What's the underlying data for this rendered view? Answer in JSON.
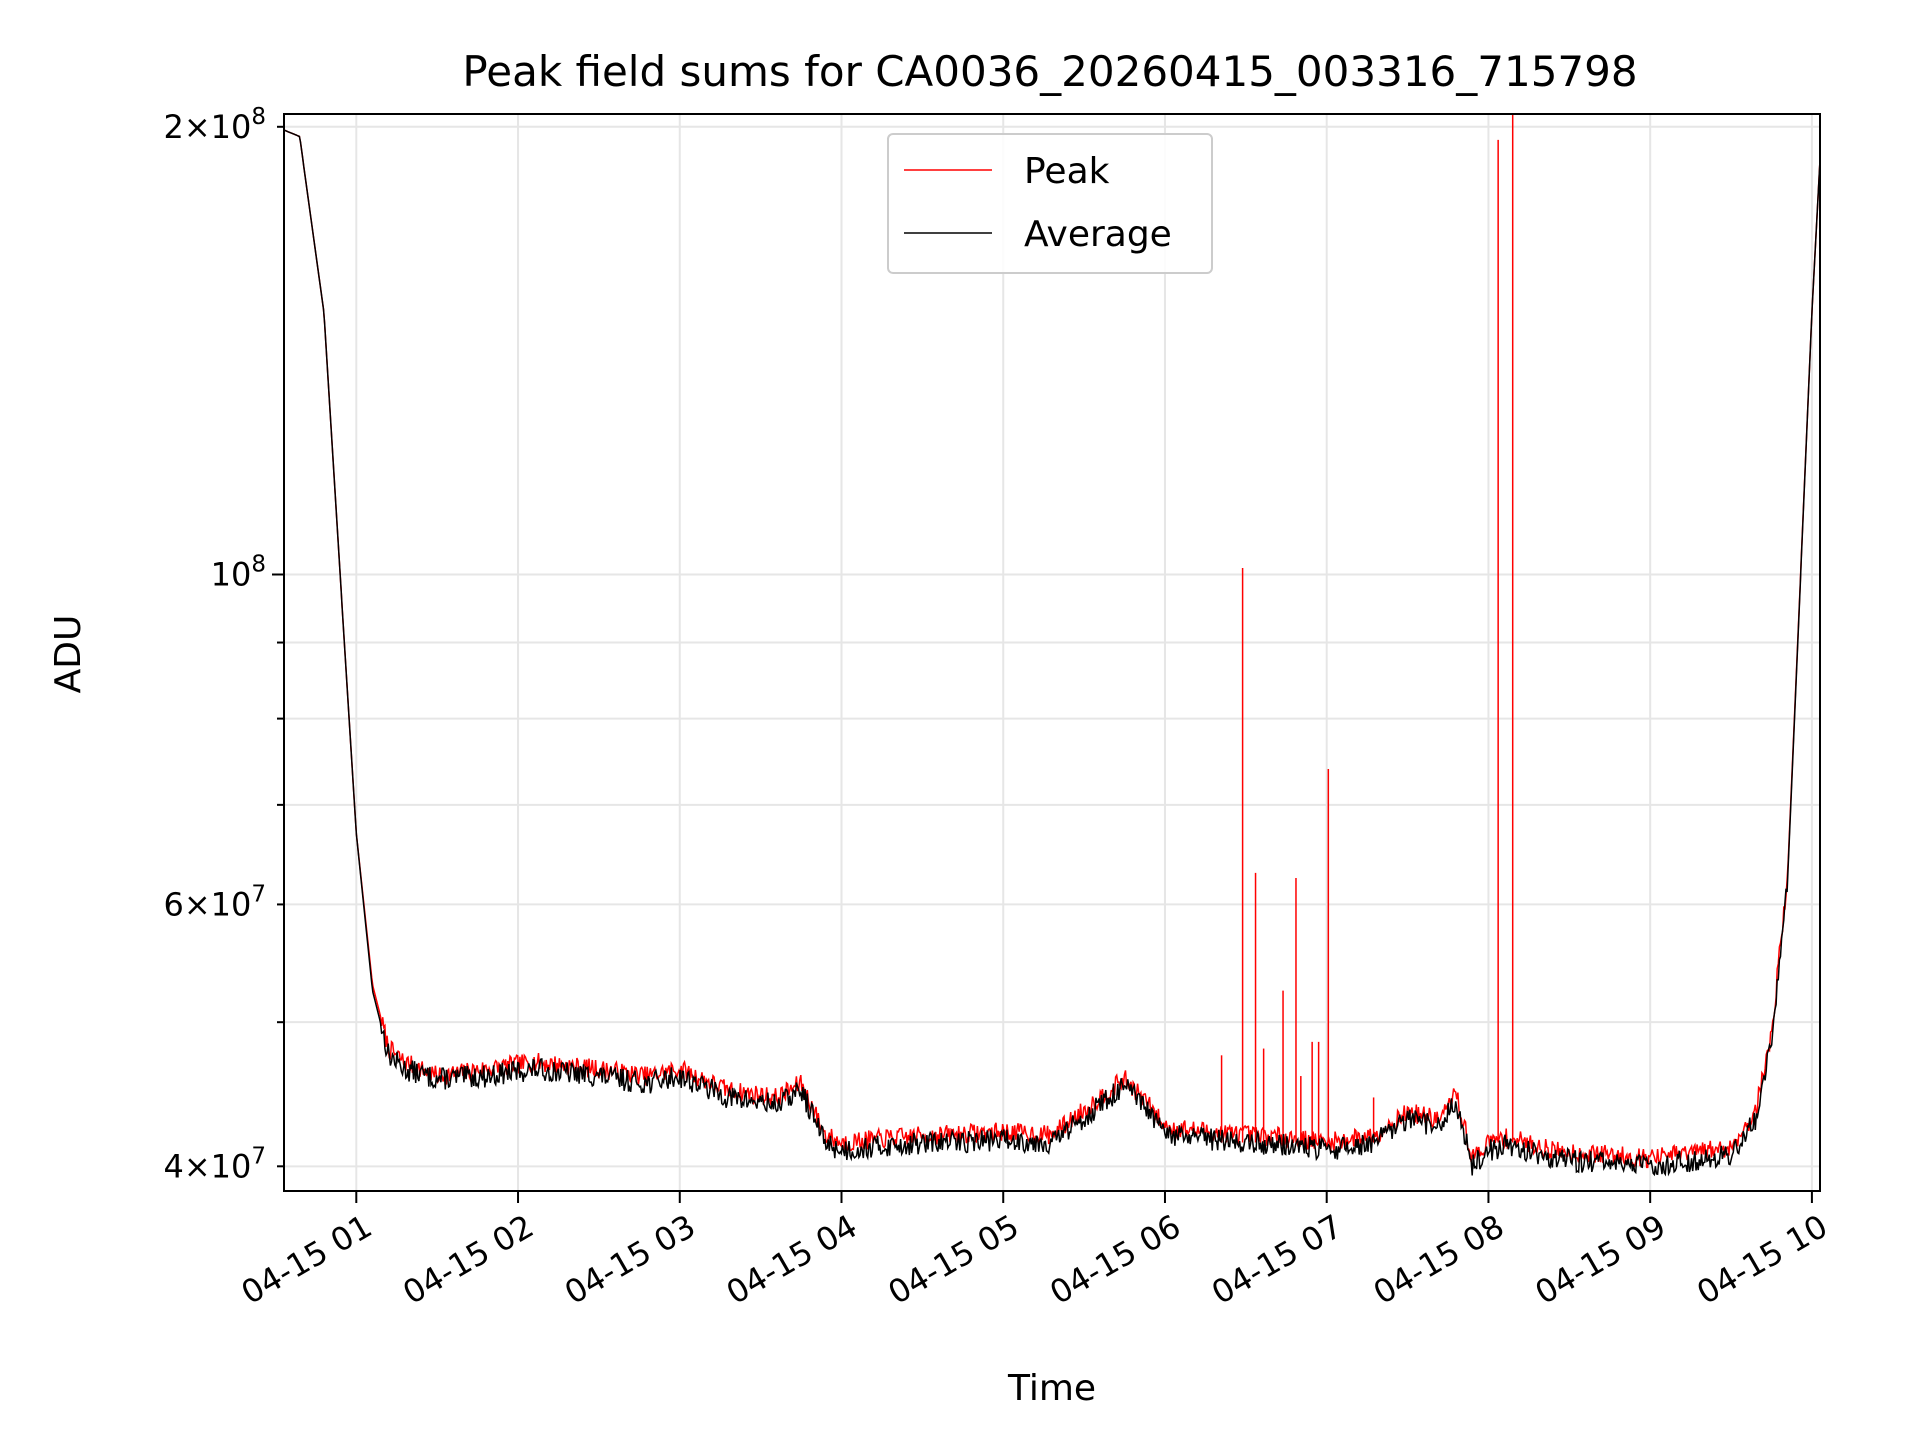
{
  "chart_data": {
    "type": "line",
    "title": "Peak field sums for CA0036_20260415_003316_715798",
    "xlabel": "Time",
    "ylabel": "ADU",
    "yscale": "log",
    "grid": true,
    "legend_position": "top-center",
    "xlim_hours": [
      0.553,
      10.05
    ],
    "ylim": [
      38500000,
      204000000
    ],
    "x_ticks": [
      {
        "label": "04-15 01",
        "hour": 1
      },
      {
        "label": "04-15 02",
        "hour": 2
      },
      {
        "label": "04-15 03",
        "hour": 3
      },
      {
        "label": "04-15 04",
        "hour": 4
      },
      {
        "label": "04-15 05",
        "hour": 5
      },
      {
        "label": "04-15 06",
        "hour": 6
      },
      {
        "label": "04-15 07",
        "hour": 7
      },
      {
        "label": "04-15 08",
        "hour": 8
      },
      {
        "label": "04-15 09",
        "hour": 9
      },
      {
        "label": "04-15 10",
        "hour": 10
      }
    ],
    "y_ticks_major": [
      {
        "base": "10",
        "exp": "8",
        "coef": "",
        "value": 100000000
      }
    ],
    "y_ticks_minor_labeled": [
      {
        "coef": "2",
        "base": "10",
        "exp": "8",
        "value": 200000000
      },
      {
        "coef": "6",
        "base": "10",
        "exp": "7",
        "value": 60000000
      },
      {
        "coef": "4",
        "base": "10",
        "exp": "7",
        "value": 40000000
      }
    ],
    "y_ticks_minor_unlabeled": [
      50000000,
      70000000,
      80000000,
      90000000
    ],
    "series": [
      {
        "name": "Peak",
        "color": "#ff0000",
        "x_hours": [
          0.553,
          0.65,
          0.8,
          0.9,
          1.0,
          1.1,
          1.2,
          1.3,
          1.5,
          1.8,
          2.1,
          2.5,
          2.8,
          3.0,
          3.3,
          3.6,
          3.75,
          3.9,
          4.0,
          4.3,
          4.6,
          5.0,
          5.3,
          5.6,
          5.75,
          5.9,
          6.0,
          6.2,
          6.5,
          6.8,
          7.0,
          7.3,
          7.5,
          7.7,
          7.8,
          7.9,
          8.0,
          8.1,
          8.2,
          8.4,
          8.6,
          8.8,
          9.0,
          9.2,
          9.5,
          9.65,
          9.75,
          9.85,
          10.0,
          10.05
        ],
        "values": [
          199000000,
          197000000,
          150000000,
          100000000,
          67000000,
          53000000,
          48000000,
          47000000,
          46000000,
          46500000,
          47000000,
          46500000,
          46000000,
          46500000,
          45000000,
          44500000,
          45500000,
          42000000,
          41500000,
          41800000,
          42000000,
          42200000,
          42000000,
          44500000,
          45800000,
          44000000,
          42500000,
          42300000,
          42000000,
          41800000,
          41500000,
          42000000,
          43500000,
          43000000,
          44800000,
          40500000,
          41500000,
          41800000,
          41600000,
          41000000,
          40800000,
          40700000,
          40500000,
          40800000,
          41200000,
          43500000,
          49000000,
          63000000,
          150000000,
          190000000
        ],
        "spikes": [
          {
            "x_hour": 6.35,
            "value": 47500000
          },
          {
            "x_hour": 6.48,
            "value": 101000000
          },
          {
            "x_hour": 6.56,
            "value": 63000000
          },
          {
            "x_hour": 6.61,
            "value": 48000000
          },
          {
            "x_hour": 6.73,
            "value": 52500000
          },
          {
            "x_hour": 6.81,
            "value": 62500000
          },
          {
            "x_hour": 6.84,
            "value": 46000000
          },
          {
            "x_hour": 6.91,
            "value": 48500000
          },
          {
            "x_hour": 6.95,
            "value": 48500000
          },
          {
            "x_hour": 7.01,
            "value": 74000000
          },
          {
            "x_hour": 7.29,
            "value": 44500000
          },
          {
            "x_hour": 8.06,
            "value": 196000000
          },
          {
            "x_hour": 8.15,
            "value": 204000000
          }
        ]
      },
      {
        "name": "Average",
        "color": "#000000",
        "x_hours": [
          0.553,
          0.65,
          0.8,
          0.9,
          1.0,
          1.1,
          1.2,
          1.3,
          1.5,
          1.8,
          2.1,
          2.5,
          2.8,
          3.0,
          3.3,
          3.6,
          3.75,
          3.9,
          4.0,
          4.3,
          4.6,
          5.0,
          5.3,
          5.6,
          5.75,
          5.9,
          6.0,
          6.2,
          6.5,
          6.8,
          7.0,
          7.3,
          7.5,
          7.7,
          7.8,
          7.9,
          8.0,
          8.1,
          8.2,
          8.4,
          8.6,
          8.8,
          9.0,
          9.2,
          9.5,
          9.65,
          9.75,
          9.85,
          10.0,
          10.05
        ],
        "values": [
          199000000,
          197000000,
          150000000,
          100000000,
          67000000,
          52500000,
          47500000,
          46500000,
          45800000,
          46000000,
          46500000,
          46000000,
          45500000,
          46000000,
          44500000,
          44000000,
          45000000,
          41500000,
          41000000,
          41300000,
          41500000,
          41700000,
          41500000,
          44000000,
          45300000,
          43500000,
          42000000,
          41800000,
          41500000,
          41300000,
          41000000,
          41500000,
          43000000,
          42500000,
          44300000,
          40000000,
          41000000,
          41300000,
          41100000,
          40500000,
          40300000,
          40200000,
          40000000,
          40300000,
          40700000,
          43000000,
          48500000,
          62500000,
          150000000,
          190000000
        ]
      }
    ]
  }
}
